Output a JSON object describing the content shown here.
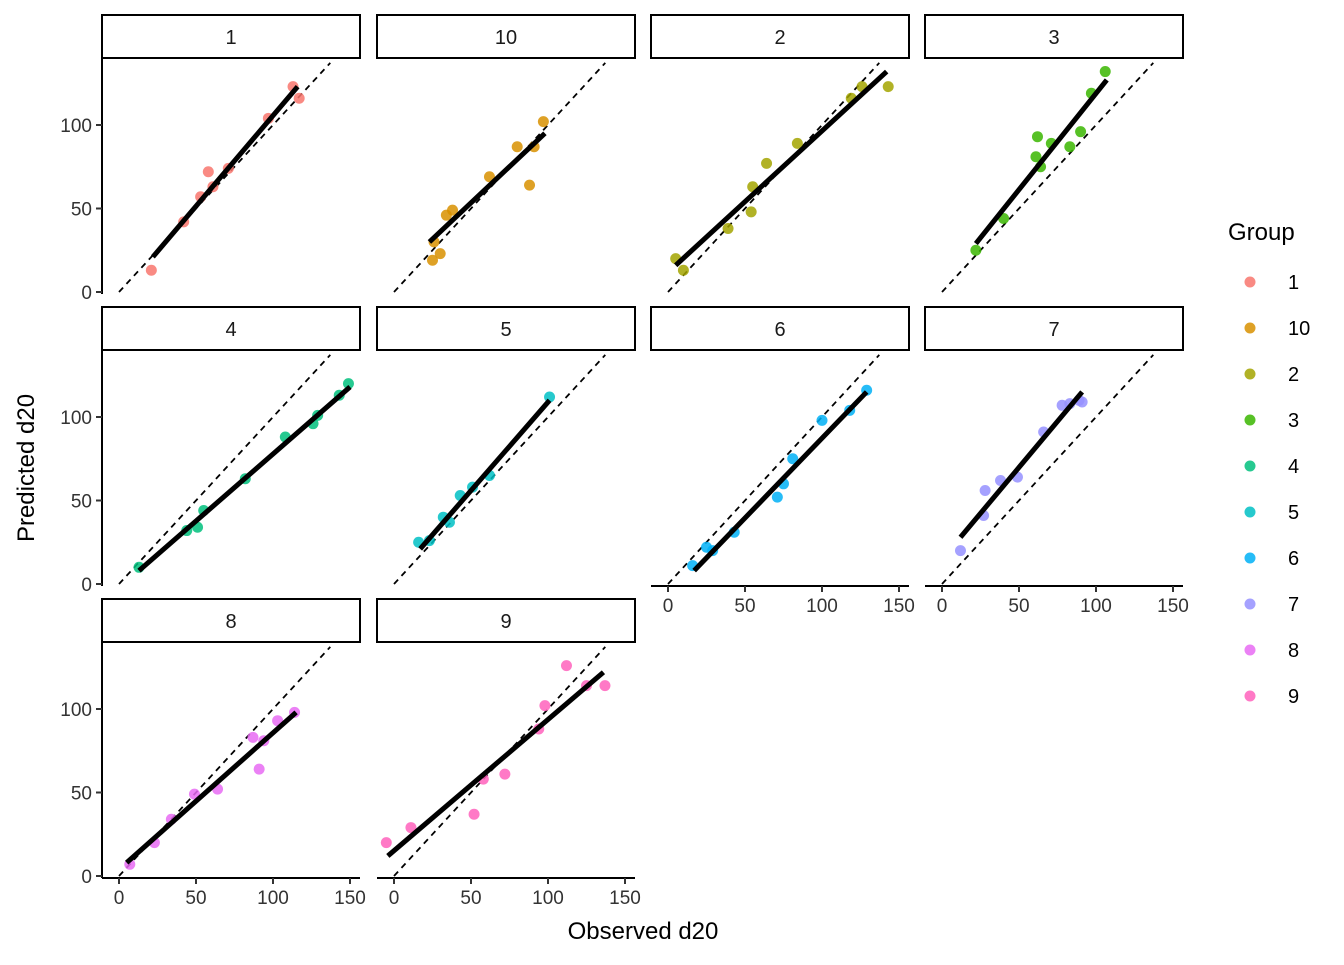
{
  "chart_data": {
    "type": "scatter",
    "xlabel": "Observed d20",
    "ylabel": "Predicted d20",
    "xlim": [
      -12,
      155
    ],
    "ylim": [
      0,
      140
    ],
    "x_ticks": [
      0,
      50,
      100,
      150
    ],
    "y_ticks": [
      0,
      50,
      100
    ],
    "grid": false,
    "reference_line": "y = x (dashed)",
    "legend": {
      "title": "Group",
      "placement": "right"
    },
    "panels": [
      {
        "name": "1",
        "color": "#F8766D",
        "points": [
          [
            21,
            13
          ],
          [
            42,
            42
          ],
          [
            53,
            57
          ],
          [
            58,
            72
          ],
          [
            61,
            63
          ],
          [
            71,
            74
          ],
          [
            97,
            104
          ],
          [
            113,
            123
          ],
          [
            117,
            116
          ]
        ],
        "fit": [
          [
            22,
            21
          ],
          [
            116,
            123
          ]
        ]
      },
      {
        "name": "10",
        "color": "#D89000",
        "points": [
          [
            25,
            19
          ],
          [
            26,
            30
          ],
          [
            30,
            23
          ],
          [
            34,
            46
          ],
          [
            38,
            49
          ],
          [
            62,
            69
          ],
          [
            80,
            87
          ],
          [
            88,
            64
          ],
          [
            91,
            87
          ],
          [
            97,
            102
          ]
        ],
        "fit": [
          [
            23,
            30
          ],
          [
            98,
            95
          ]
        ]
      },
      {
        "name": "2",
        "color": "#A3A500",
        "points": [
          [
            5,
            20
          ],
          [
            10,
            13
          ],
          [
            39,
            38
          ],
          [
            54,
            48
          ],
          [
            55,
            63
          ],
          [
            64,
            77
          ],
          [
            84,
            89
          ],
          [
            119,
            116
          ],
          [
            126,
            123
          ],
          [
            143,
            123
          ]
        ],
        "fit": [
          [
            5,
            16
          ],
          [
            142,
            132
          ]
        ]
      },
      {
        "name": "3",
        "color": "#39B600",
        "points": [
          [
            22,
            25
          ],
          [
            40,
            44
          ],
          [
            61,
            81
          ],
          [
            62,
            93
          ],
          [
            64,
            75
          ],
          [
            71,
            89
          ],
          [
            83,
            87
          ],
          [
            90,
            96
          ],
          [
            97,
            119
          ],
          [
            106,
            132
          ]
        ],
        "fit": [
          [
            22,
            29
          ],
          [
            107,
            127
          ]
        ]
      },
      {
        "name": "4",
        "color": "#00BF7D",
        "points": [
          [
            13,
            10
          ],
          [
            44,
            32
          ],
          [
            51,
            34
          ],
          [
            55,
            44
          ],
          [
            82,
            63
          ],
          [
            108,
            88
          ],
          [
            126,
            96
          ],
          [
            129,
            101
          ],
          [
            143,
            113
          ],
          [
            149,
            120
          ]
        ],
        "fit": [
          [
            13,
            8
          ],
          [
            150,
            118
          ]
        ]
      },
      {
        "name": "5",
        "color": "#00BFC4",
        "points": [
          [
            16,
            25
          ],
          [
            23,
            26
          ],
          [
            32,
            40
          ],
          [
            36,
            37
          ],
          [
            43,
            53
          ],
          [
            51,
            58
          ],
          [
            62,
            65
          ],
          [
            101,
            112
          ]
        ],
        "fit": [
          [
            17,
            21
          ],
          [
            101,
            110
          ]
        ]
      },
      {
        "name": "6",
        "color": "#00B0F6",
        "points": [
          [
            16,
            11
          ],
          [
            25,
            22
          ],
          [
            29,
            20
          ],
          [
            43,
            31
          ],
          [
            71,
            52
          ],
          [
            75,
            60
          ],
          [
            81,
            75
          ],
          [
            100,
            98
          ],
          [
            118,
            104
          ],
          [
            129,
            116
          ]
        ],
        "fit": [
          [
            17,
            8
          ],
          [
            129,
            115
          ]
        ]
      },
      {
        "name": "7",
        "color": "#9590FF",
        "points": [
          [
            12,
            20
          ],
          [
            27,
            41
          ],
          [
            28,
            56
          ],
          [
            38,
            62
          ],
          [
            49,
            64
          ],
          [
            66,
            91
          ],
          [
            78,
            107
          ],
          [
            83,
            108
          ],
          [
            89,
            110
          ],
          [
            91,
            109
          ]
        ],
        "fit": [
          [
            12,
            28
          ],
          [
            91,
            115
          ]
        ]
      },
      {
        "name": "8",
        "color": "#E76BF3",
        "points": [
          [
            7,
            7
          ],
          [
            23,
            20
          ],
          [
            34,
            34
          ],
          [
            49,
            49
          ],
          [
            64,
            52
          ],
          [
            87,
            83
          ],
          [
            94,
            81
          ],
          [
            91,
            64
          ],
          [
            103,
            93
          ],
          [
            114,
            98
          ]
        ],
        "fit": [
          [
            5,
            8
          ],
          [
            115,
            98
          ]
        ]
      },
      {
        "name": "9",
        "color": "#FF62BC",
        "points": [
          [
            -5,
            20
          ],
          [
            11,
            29
          ],
          [
            52,
            37
          ],
          [
            58,
            58
          ],
          [
            72,
            61
          ],
          [
            94,
            88
          ],
          [
            98,
            102
          ],
          [
            112,
            126
          ],
          [
            125,
            114
          ],
          [
            137,
            114
          ]
        ],
        "fit": [
          [
            -4,
            12
          ],
          [
            136,
            122
          ]
        ]
      }
    ]
  }
}
